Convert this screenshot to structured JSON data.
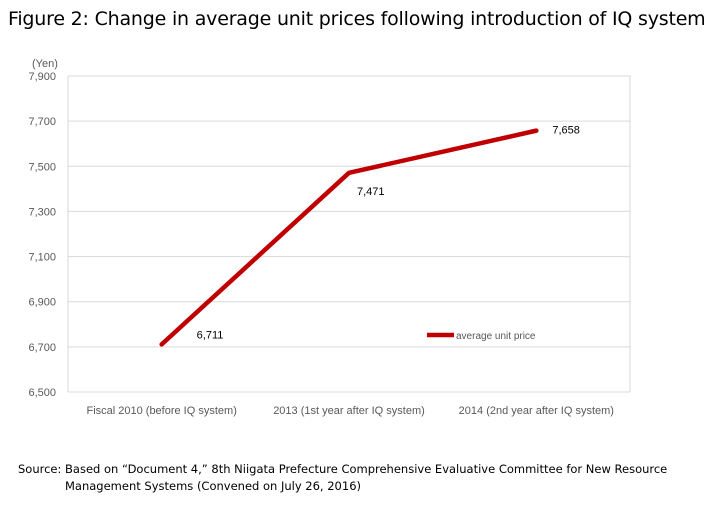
{
  "title": "Figure 2: Change in average unit prices following introduction of IQ system",
  "source": {
    "line1": "Source: Based on “Document 4,” 8th Niigata Prefecture Comprehensive Evaluative Committee for New Resource",
    "line2": "Management Systems (Convened on July 26, 2016)"
  },
  "chart_data": {
    "type": "line",
    "ylabel": "(Yen)",
    "xlabel": "",
    "categories": [
      "Fiscal 2010 (before IQ system)",
      "2013 (1st year after IQ system)",
      "2014 (2nd year after IQ system)"
    ],
    "series": [
      {
        "name": "average unit price",
        "values": [
          6711,
          7471,
          7658
        ],
        "labels": [
          "6,711",
          "7,471",
          "7,658"
        ],
        "color": "#c00000"
      }
    ],
    "ylim": [
      6500,
      7900
    ],
    "yticks": [
      6500,
      6700,
      6900,
      7100,
      7300,
      7500,
      7700,
      7900
    ],
    "ytick_labels": [
      "6,500",
      "6,700",
      "6,900",
      "7,100",
      "7,300",
      "7,500",
      "7,700",
      "7,900"
    ],
    "grid": true,
    "legend": "right"
  }
}
